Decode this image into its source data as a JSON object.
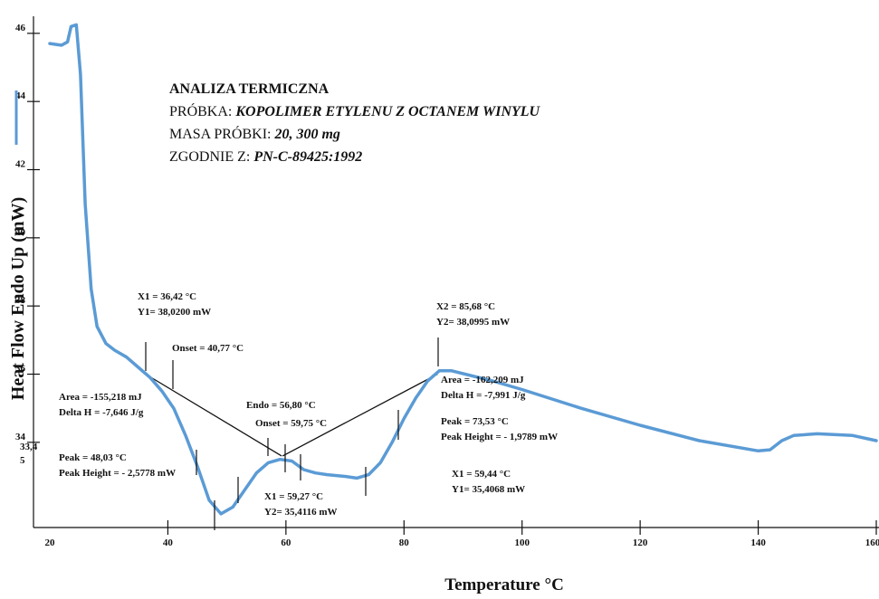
{
  "chart_data": {
    "type": "line",
    "xlabel": "Temperature",
    "xlabel_unit": "°C",
    "ylabel": "Heat Flow Endo Up (mW)",
    "xlim": [
      20,
      160
    ],
    "ylim": [
      31.5,
      46.5
    ],
    "x_ticks": [
      "20",
      "40",
      "60",
      "80",
      "100",
      "120",
      "140",
      "160"
    ],
    "y_ticks": [
      "46",
      "44",
      "42",
      "40",
      "38",
      "36",
      "34"
    ],
    "y_extra_label": "33,4\n5",
    "series": [
      {
        "color": "#5b9bd5",
        "points": [
          [
            20,
            45.7
          ],
          [
            22,
            45.65
          ],
          [
            23,
            45.75
          ],
          [
            23.6,
            46.2
          ],
          [
            24.5,
            46.25
          ],
          [
            25.2,
            44.8
          ],
          [
            26,
            41.0
          ],
          [
            27,
            38.5
          ],
          [
            28,
            37.4
          ],
          [
            29.5,
            36.9
          ],
          [
            31,
            36.7
          ],
          [
            33,
            36.5
          ],
          [
            35,
            36.2
          ],
          [
            37,
            35.9
          ],
          [
            39,
            35.5
          ],
          [
            41,
            35.0
          ],
          [
            43,
            34.2
          ],
          [
            45,
            33.3
          ],
          [
            47,
            32.3
          ],
          [
            49,
            31.9
          ],
          [
            51,
            32.1
          ],
          [
            53,
            32.6
          ],
          [
            55,
            33.1
          ],
          [
            57,
            33.4
          ],
          [
            59,
            33.5
          ],
          [
            61,
            33.45
          ],
          [
            63,
            33.2
          ],
          [
            65,
            33.1
          ],
          [
            67,
            33.05
          ],
          [
            70,
            33.0
          ],
          [
            72,
            32.95
          ],
          [
            74,
            33.05
          ],
          [
            76,
            33.4
          ],
          [
            78,
            34.0
          ],
          [
            80,
            34.7
          ],
          [
            82,
            35.3
          ],
          [
            84,
            35.8
          ],
          [
            86,
            36.1
          ],
          [
            88,
            36.1
          ],
          [
            95,
            35.8
          ],
          [
            100,
            35.55
          ],
          [
            110,
            35.0
          ],
          [
            120,
            34.5
          ],
          [
            130,
            34.05
          ],
          [
            140,
            33.75
          ],
          [
            142,
            33.78
          ],
          [
            144,
            34.05
          ],
          [
            146,
            34.2
          ],
          [
            150,
            34.25
          ],
          [
            156,
            34.2
          ],
          [
            160,
            34.05
          ]
        ]
      }
    ],
    "baselines": [
      {
        "from": [
          36.42,
          35.98
        ],
        "to": [
          59.27,
          33.6
        ]
      },
      {
        "from": [
          59.44,
          33.6
        ],
        "to": [
          85.68,
          36.0
        ]
      }
    ]
  },
  "info": {
    "title": "ANALIZA TERMICZNA",
    "sample_label": "PRÓBKA: ",
    "sample_value": "KOPOLIMER ETYLENU Z OCTANEM WINYLU",
    "mass_label": "MASA PRÓBKI: ",
    "mass_value": "20, 300 mg",
    "standard_label": "ZGODNIE Z: ",
    "standard_value": "PN-C-89425:1992"
  },
  "annotations": {
    "peak1_x1": "X1 = 36,42 °C",
    "peak1_y1": "Y1= 38,0200 mW",
    "peak1_onset": "Onset = 40,77 °C",
    "peak1_area": "Area = -155,218 mJ",
    "peak1_delta": "Delta H = -7,646 J/g",
    "peak1_peak": "Peak = 48,03 °C",
    "peak1_height": "Peak Height = - 2,5778 mW",
    "peak1_x2": "X1 = 59,27 °C",
    "peak1_y2": "Y2= 35,4116 mW",
    "peak2_endo": "Endo = 56,80 °C",
    "peak2_onset": "Onset = 59,75 °C",
    "peak2_x2": "X2 = 85,68 °C",
    "peak2_y2": "Y2= 38,0995 mW",
    "peak2_area": "Area = -162,209 mJ",
    "peak2_delta": "Delta H = -7,991 J/g",
    "peak2_peak": "Peak = 73,53 °C",
    "peak2_height": "Peak Height = - 1,9789 mW",
    "peak2_x1": "X1 = 59,44 °C",
    "peak2_y1": "Y1= 35,4068 mW"
  }
}
